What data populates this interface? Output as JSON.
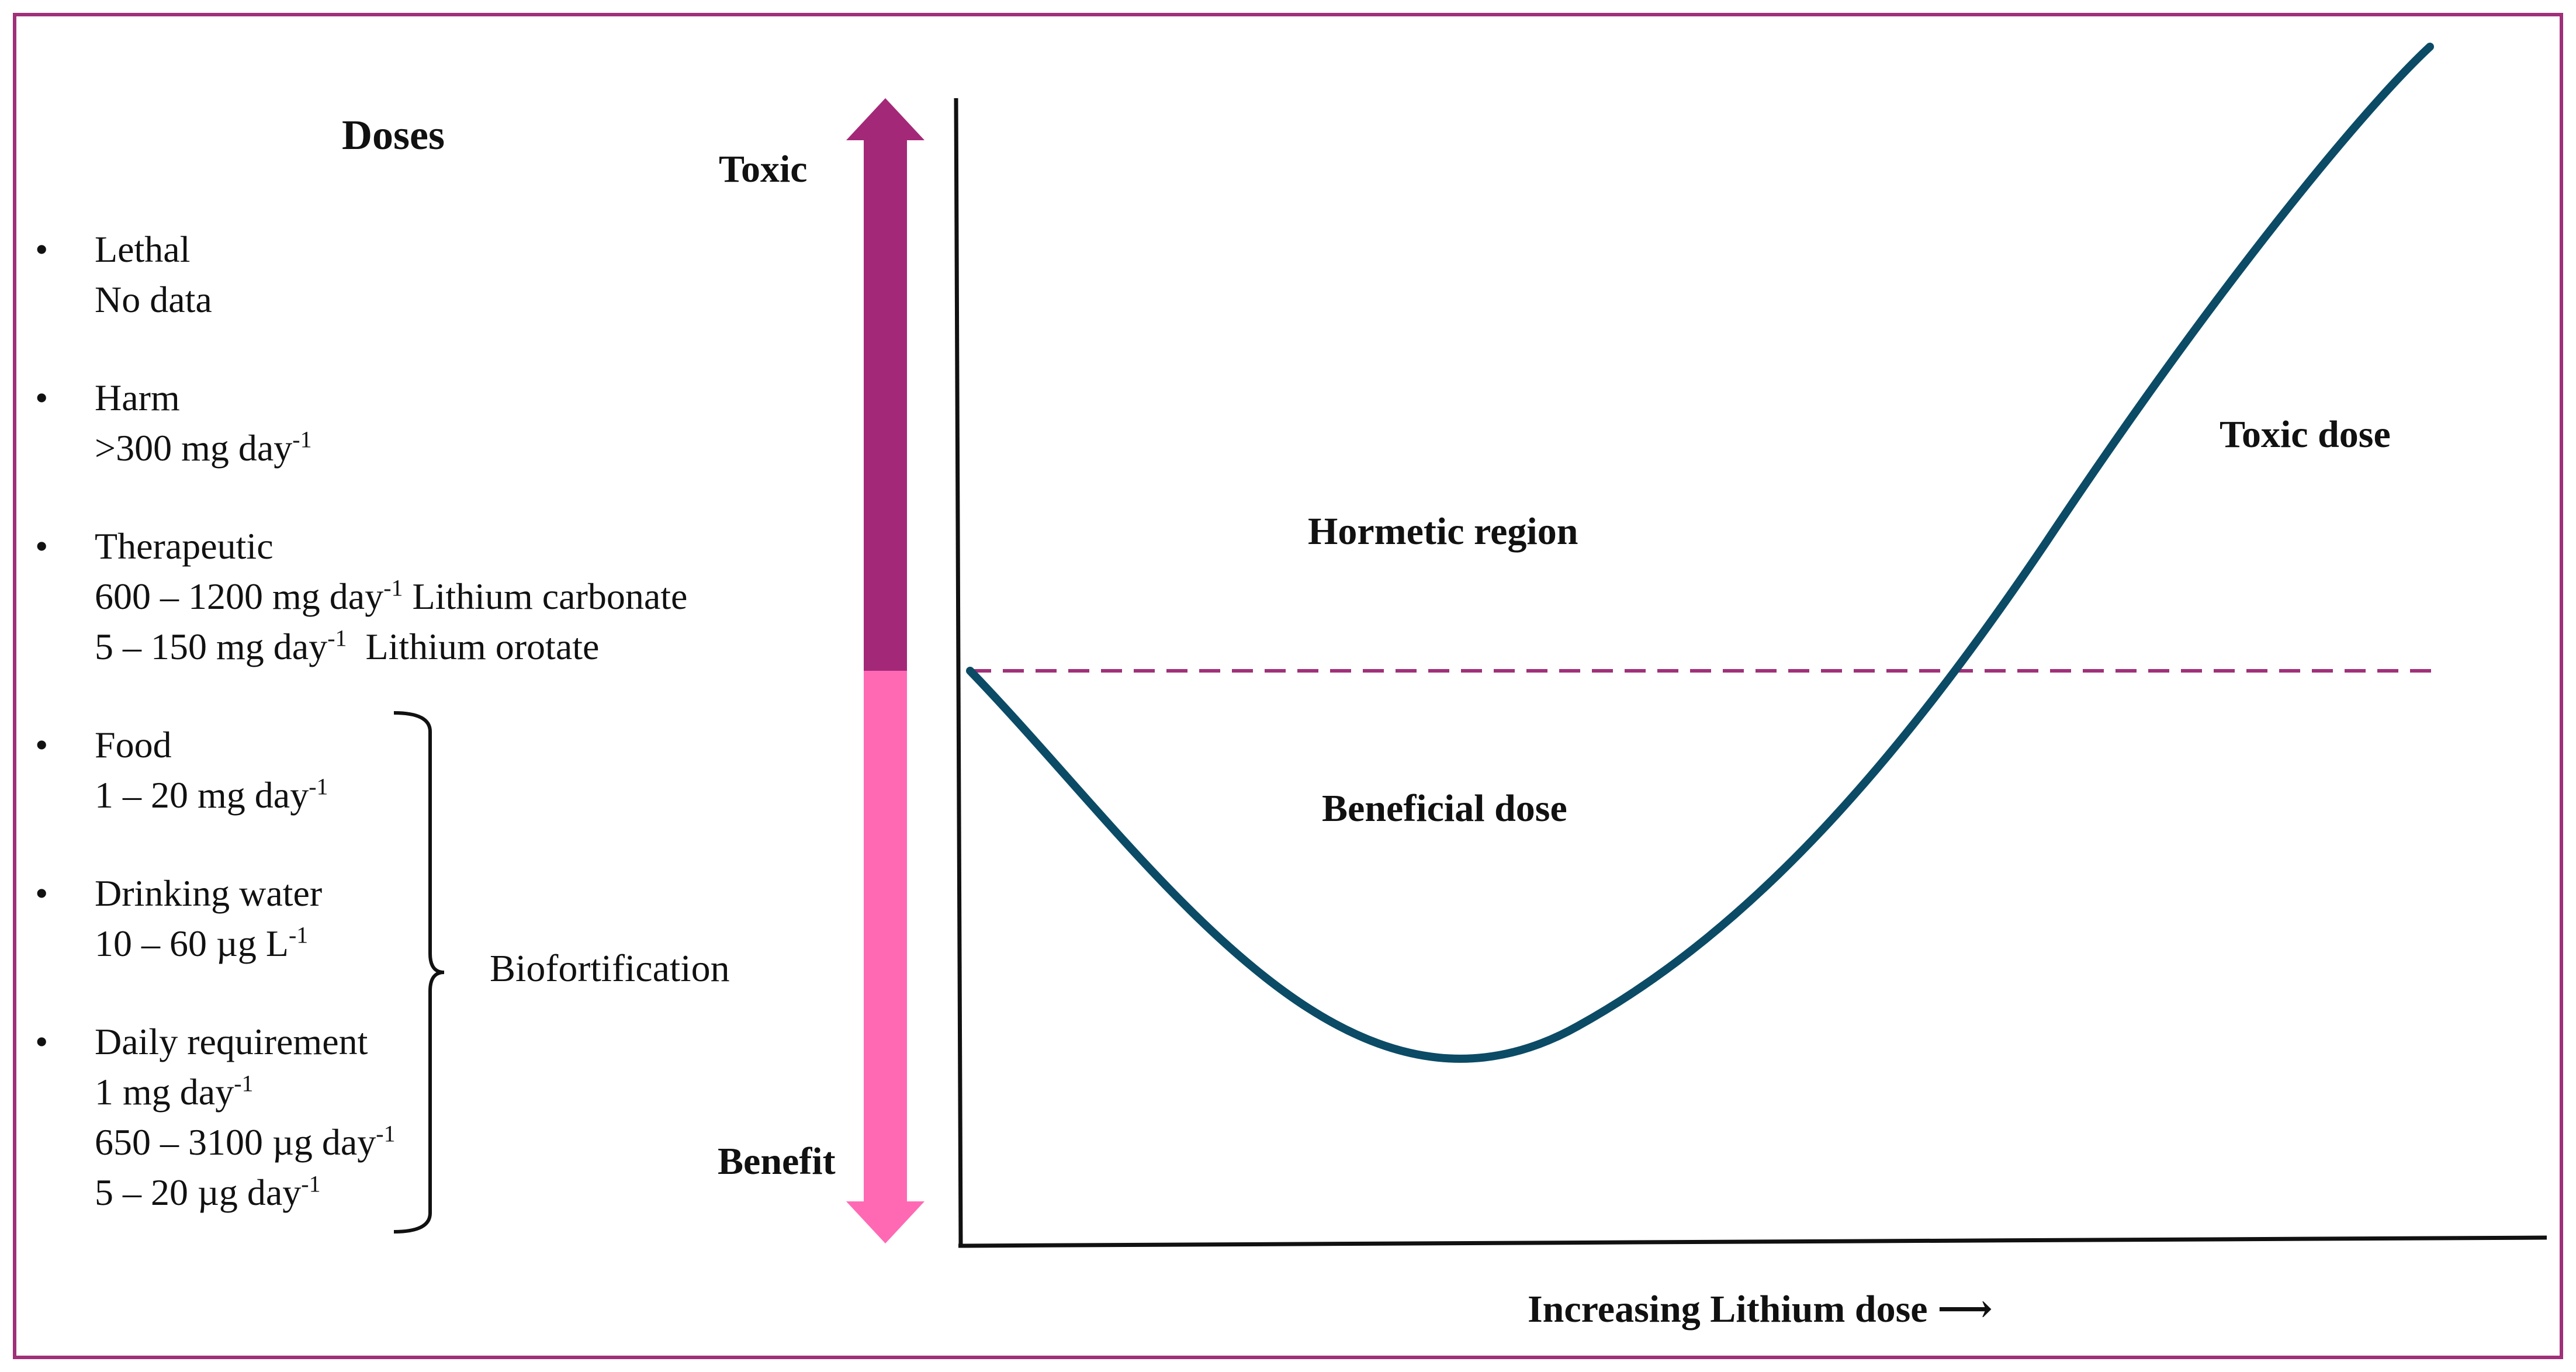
{
  "colors": {
    "frame": "#a0307a",
    "toxic_arrow": "#a42878",
    "benefit_arrow": "#ff69b4",
    "curve": "#0b4b66",
    "threshold_line": "#a0307a"
  },
  "doses_panel": {
    "title": "Doses",
    "items": [
      {
        "bullet": "•",
        "lines": [
          {
            "text": "Lethal"
          },
          {
            "text": "No data"
          }
        ]
      },
      {
        "bullet": "•",
        "lines": [
          {
            "text": "Harm"
          },
          {
            "text": ">300 mg day",
            "sup": "-1"
          }
        ]
      },
      {
        "bullet": "•",
        "lines": [
          {
            "text": "Therapeutic"
          },
          {
            "text": "600 – 1200 mg day",
            "sup": "-1",
            "after": " Lithium carbonate"
          },
          {
            "text": "5 – 150 mg day",
            "sup": "-1",
            "after": "  Lithium orotate"
          }
        ]
      },
      {
        "bullet": "•",
        "lines": [
          {
            "text": "Food"
          },
          {
            "text": "1 – 20 mg day",
            "sup": "-1"
          }
        ]
      },
      {
        "bullet": "•",
        "lines": [
          {
            "text": "Drinking water"
          },
          {
            "text": "10 – 60 µg L",
            "sup": "-1"
          }
        ]
      },
      {
        "bullet": "•",
        "lines": [
          {
            "text": "Daily requirement"
          },
          {
            "text": "1 mg day",
            "sup": "-1"
          },
          {
            "text": "650 – 3100 µg day",
            "sup": "-1"
          },
          {
            "text": "5 – 20 µg day",
            "sup": "-1"
          }
        ]
      }
    ],
    "biofortification_label": "Biofortification"
  },
  "scale_arrow": {
    "top_label": "Toxic",
    "bottom_label": "Benefit"
  },
  "graph": {
    "region_labels": {
      "hormetic": "Hormetic region",
      "beneficial": "Beneficial dose",
      "toxic": "Toxic dose"
    },
    "x_axis_label": "Increasing Lithium dose",
    "x_axis_arrow": "⟶"
  }
}
